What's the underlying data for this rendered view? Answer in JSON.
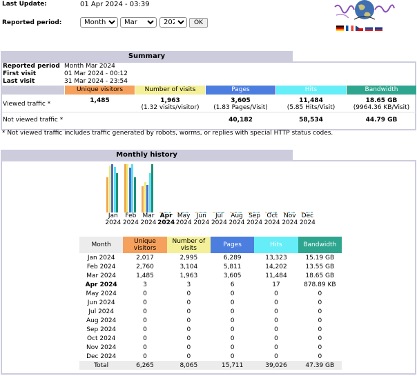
{
  "header": {
    "last_update_label": "Last Update:",
    "last_update_value": "01 Apr 2024 - 03:39",
    "period_label": "Reported period:",
    "period_type": "Month",
    "period_month": "Mar",
    "period_year": "2024",
    "ok_label": "OK",
    "languages": [
      "de",
      "fr",
      "cs",
      "sk",
      "ru"
    ]
  },
  "summary": {
    "title": "Summary",
    "reported_period_label": "Reported period",
    "reported_period_value": "Month Mar 2024",
    "first_visit_label": "First visit",
    "first_visit_value": "01 Mar 2024 - 00:12",
    "last_visit_label": "Last visit",
    "last_visit_value": "31 Mar 2024 - 23:54",
    "columns": [
      "Unique visitors",
      "Number of visits",
      "Pages",
      "Hits",
      "Bandwidth"
    ],
    "viewed_label": "Viewed traffic *",
    "viewed": {
      "unique": "1,485",
      "visits": "1,963",
      "visits_sub": "(1.32 visits/visitor)",
      "pages": "3,605",
      "pages_sub": "(1.83 Pages/Visit)",
      "hits": "11,484",
      "hits_sub": "(5.85 Hits/Visit)",
      "bandwidth": "18.65 GB",
      "bandwidth_sub": "(9964.36 KB/Visit)"
    },
    "not_viewed_label": "Not viewed traffic *",
    "not_viewed": {
      "pages": "40,182",
      "hits": "58,534",
      "bandwidth": "44.79 GB"
    },
    "footnote": "* Not viewed traffic includes traffic generated by robots, worms, or replies with special HTTP status codes."
  },
  "colors": {
    "unique": "#f5a05c",
    "visits": "#f4f099",
    "pages": "#4c7ee0",
    "hits": "#66eef8",
    "bandwidth": "#2ea58f",
    "bar_unique": "#f0a84a",
    "bar_visits": "#eeea7e",
    "bar_pages": "#3e6fd8",
    "bar_hits": "#5fdff0",
    "bar_bandwidth": "#1f8f77",
    "frame": "#ccccdd",
    "rowbg": "#ececec"
  },
  "monthly": {
    "title": "Monthly history",
    "month_header": "Month",
    "columns": [
      "Unique visitors",
      "Number of visits",
      "Pages",
      "Hits",
      "Bandwidth"
    ],
    "rows": [
      {
        "month": "Jan 2024",
        "unique": "2,017",
        "visits": "2,995",
        "pages": "6,289",
        "hits": "13,323",
        "bandwidth": "15.19 GB"
      },
      {
        "month": "Feb 2024",
        "unique": "2,760",
        "visits": "3,104",
        "pages": "5,811",
        "hits": "14,202",
        "bandwidth": "13.55 GB"
      },
      {
        "month": "Mar 2024",
        "unique": "1,485",
        "visits": "1,963",
        "pages": "3,605",
        "hits": "11,484",
        "bandwidth": "18.65 GB"
      },
      {
        "month": "Apr 2024",
        "unique": "3",
        "visits": "3",
        "pages": "6",
        "hits": "17",
        "bandwidth": "878.89 KB",
        "current": true
      },
      {
        "month": "May 2024",
        "unique": "0",
        "visits": "0",
        "pages": "0",
        "hits": "0",
        "bandwidth": "0"
      },
      {
        "month": "Jun 2024",
        "unique": "0",
        "visits": "0",
        "pages": "0",
        "hits": "0",
        "bandwidth": "0"
      },
      {
        "month": "Jul 2024",
        "unique": "0",
        "visits": "0",
        "pages": "0",
        "hits": "0",
        "bandwidth": "0"
      },
      {
        "month": "Aug 2024",
        "unique": "0",
        "visits": "0",
        "pages": "0",
        "hits": "0",
        "bandwidth": "0"
      },
      {
        "month": "Sep 2024",
        "unique": "0",
        "visits": "0",
        "pages": "0",
        "hits": "0",
        "bandwidth": "0"
      },
      {
        "month": "Oct 2024",
        "unique": "0",
        "visits": "0",
        "pages": "0",
        "hits": "0",
        "bandwidth": "0"
      },
      {
        "month": "Nov 2024",
        "unique": "0",
        "visits": "0",
        "pages": "0",
        "hits": "0",
        "bandwidth": "0"
      },
      {
        "month": "Dec 2024",
        "unique": "0",
        "visits": "0",
        "pages": "0",
        "hits": "0",
        "bandwidth": "0"
      }
    ],
    "total": {
      "month": "Total",
      "unique": "6,265",
      "visits": "8,065",
      "pages": "15,711",
      "hits": "39,026",
      "bandwidth": "47.39 GB"
    }
  },
  "chart_data": {
    "type": "bar",
    "categories": [
      [
        "Jan",
        "2024"
      ],
      [
        "Feb",
        "2024"
      ],
      [
        "Mar",
        "2024"
      ],
      [
        "Apr",
        "2024"
      ],
      [
        "May",
        "2024"
      ],
      [
        "Jun",
        "2024"
      ],
      [
        "Jul",
        "2024"
      ],
      [
        "Aug",
        "2024"
      ],
      [
        "Sep",
        "2024"
      ],
      [
        "Oct",
        "2024"
      ],
      [
        "Nov",
        "2024"
      ],
      [
        "Dec",
        "2024"
      ]
    ],
    "series": [
      {
        "name": "Unique visitors",
        "values": [
          2017,
          2760,
          1485,
          3,
          0,
          0,
          0,
          0,
          0,
          0,
          0,
          0
        ]
      },
      {
        "name": "Number of visits",
        "values": [
          2995,
          3104,
          1963,
          3,
          0,
          0,
          0,
          0,
          0,
          0,
          0,
          0
        ]
      },
      {
        "name": "Pages",
        "values": [
          6289,
          5811,
          3605,
          6,
          0,
          0,
          0,
          0,
          0,
          0,
          0,
          0
        ]
      },
      {
        "name": "Hits",
        "values": [
          13323,
          14202,
          11484,
          17,
          0,
          0,
          0,
          0,
          0,
          0,
          0,
          0
        ]
      },
      {
        "name": "Bandwidth",
        "values": [
          15.19,
          13.55,
          18.65,
          0.00084,
          0,
          0,
          0,
          0,
          0,
          0,
          0,
          0
        ],
        "unit": "GB"
      }
    ],
    "current_index": 3
  }
}
